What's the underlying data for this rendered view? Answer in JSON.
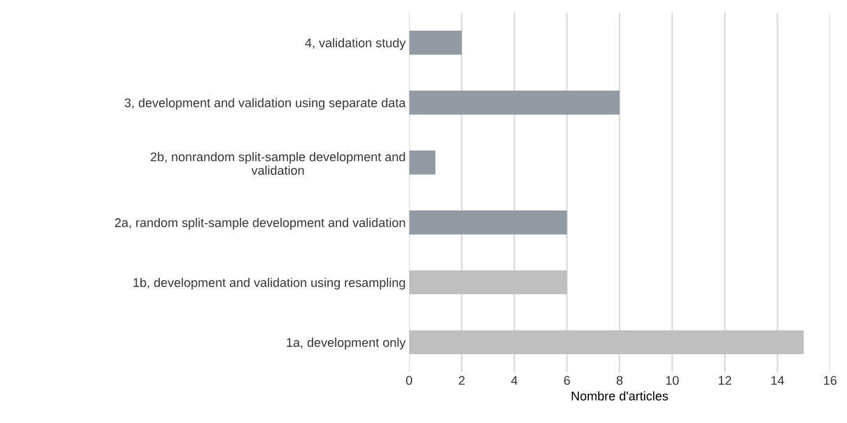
{
  "chart_data": {
    "type": "bar",
    "orientation": "horizontal",
    "xlabel": "Nombre d'articles",
    "categories": [
      "4, validation study",
      "3, development and validation using separate data",
      "2b, nonrandom split-sample development and validation",
      "2a, random split-sample development and validation",
      "1b, development and validation using resampling",
      "1a, development only"
    ],
    "values": [
      2,
      8,
      1,
      6,
      6,
      15
    ],
    "colors": [
      "#929ba3",
      "#929ba3",
      "#929ba3",
      "#929ba3",
      "#bfbfbf",
      "#bfbfbf"
    ],
    "xlim": [
      0,
      16
    ],
    "xticks": [
      0,
      2,
      4,
      6,
      8,
      10,
      12,
      14,
      16
    ],
    "grid": "x"
  }
}
